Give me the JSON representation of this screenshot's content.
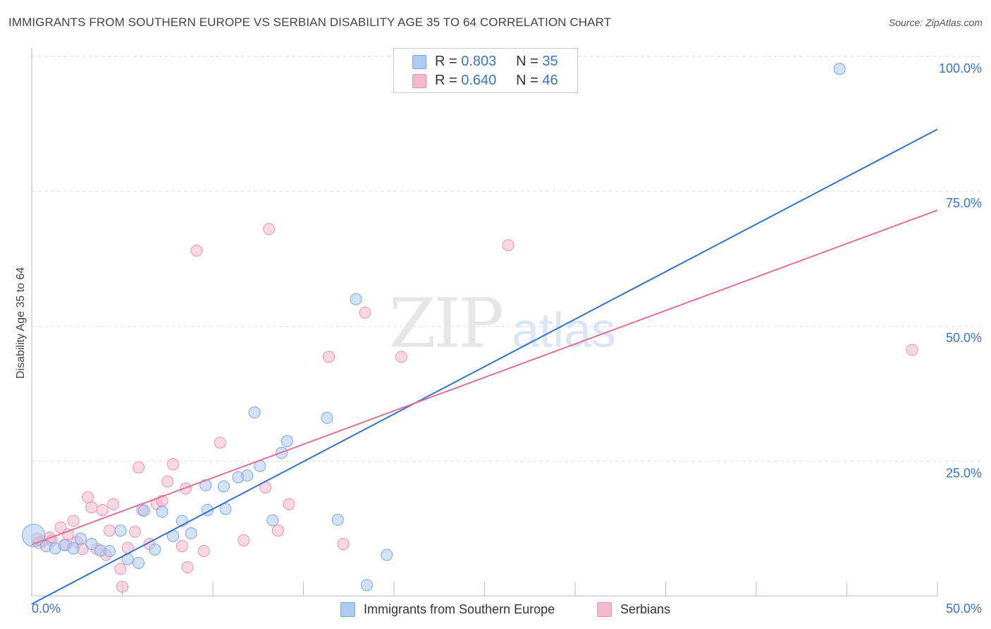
{
  "title": "IMMIGRANTS FROM SOUTHERN EUROPE VS SERBIAN DISABILITY AGE 35 TO 64 CORRELATION CHART",
  "source": "Source: ZipAtlas.com",
  "watermark": {
    "zip": "ZIP",
    "atlas": "atlas"
  },
  "colors": {
    "blue_fill": "#aecbf2",
    "blue_stroke": "#7aa6e0",
    "blue_line": "#2f73d0",
    "pink_fill": "#f5b8cc",
    "pink_stroke": "#e993b0",
    "pink_line": "#e0709a",
    "tick_label": "#3a74c8",
    "grid": "#dddddd"
  },
  "stats_legend": {
    "rows": [
      {
        "r_label": "R =",
        "r_value": "0.803",
        "n_label": "N =",
        "n_value": "35"
      },
      {
        "r_label": "R =",
        "r_value": "0.640",
        "n_label": "N =",
        "n_value": "46"
      }
    ]
  },
  "legend": {
    "blue": "Immigrants from Southern Europe",
    "pink": "Serbians"
  },
  "chart_data": {
    "type": "scatter",
    "title": "IMMIGRANTS FROM SOUTHERN EUROPE VS SERBIAN DISABILITY AGE 35 TO 64 CORRELATION CHART",
    "xlabel": "",
    "ylabel": "Disability Age 35 to 64",
    "xlim": [
      0,
      50
    ],
    "ylim": [
      0,
      100
    ],
    "x_tick_labels": [
      "0.0%",
      "50.0%"
    ],
    "y_tick_labels": [
      "25.0%",
      "50.0%",
      "75.0%",
      "100.0%"
    ],
    "y_tick_values": [
      25,
      50,
      75,
      100
    ],
    "legend_position": "bottom",
    "series": [
      {
        "name": "Immigrants from Southern Europe",
        "R": 0.803,
        "N": 35,
        "trend": {
          "x": [
            0,
            50
          ],
          "y": [
            -1.5,
            86.5
          ]
        },
        "points": [
          {
            "x": 0.1,
            "y": 11.2,
            "big": true
          },
          {
            "x": 0.8,
            "y": 9.2
          },
          {
            "x": 1.3,
            "y": 8.8
          },
          {
            "x": 1.8,
            "y": 9.4
          },
          {
            "x": 2.3,
            "y": 8.8
          },
          {
            "x": 2.7,
            "y": 10.6
          },
          {
            "x": 3.3,
            "y": 9.6
          },
          {
            "x": 3.8,
            "y": 8.4
          },
          {
            "x": 4.3,
            "y": 8.3
          },
          {
            "x": 4.9,
            "y": 12.1
          },
          {
            "x": 5.3,
            "y": 6.8
          },
          {
            "x": 5.9,
            "y": 6.1
          },
          {
            "x": 6.2,
            "y": 15.8
          },
          {
            "x": 6.8,
            "y": 8.6
          },
          {
            "x": 7.2,
            "y": 15.6
          },
          {
            "x": 7.8,
            "y": 11.1
          },
          {
            "x": 8.3,
            "y": 13.9
          },
          {
            "x": 8.8,
            "y": 11.6
          },
          {
            "x": 9.6,
            "y": 20.5
          },
          {
            "x": 9.7,
            "y": 15.9
          },
          {
            "x": 10.6,
            "y": 20.3
          },
          {
            "x": 10.7,
            "y": 16.1
          },
          {
            "x": 11.4,
            "y": 22.0
          },
          {
            "x": 11.9,
            "y": 22.3
          },
          {
            "x": 12.3,
            "y": 34.0
          },
          {
            "x": 12.6,
            "y": 24.1
          },
          {
            "x": 13.3,
            "y": 14.0
          },
          {
            "x": 13.8,
            "y": 26.5
          },
          {
            "x": 14.1,
            "y": 28.7
          },
          {
            "x": 16.3,
            "y": 33.0
          },
          {
            "x": 16.9,
            "y": 14.1
          },
          {
            "x": 17.9,
            "y": 55.0
          },
          {
            "x": 18.5,
            "y": 2.0
          },
          {
            "x": 19.6,
            "y": 7.6
          },
          {
            "x": 44.6,
            "y": 97.7
          }
        ]
      },
      {
        "name": "Serbians",
        "R": 0.64,
        "N": 46,
        "trend": {
          "x": [
            0,
            50
          ],
          "y": [
            9.5,
            71.5
          ]
        },
        "points": [
          {
            "x": 0.3,
            "y": 10.6
          },
          {
            "x": 0.6,
            "y": 10.1
          },
          {
            "x": 1.1,
            "y": 10.3
          },
          {
            "x": 1.6,
            "y": 12.7
          },
          {
            "x": 1.9,
            "y": 9.5
          },
          {
            "x": 2.3,
            "y": 13.9
          },
          {
            "x": 2.5,
            "y": 10.0
          },
          {
            "x": 2.8,
            "y": 8.7
          },
          {
            "x": 3.1,
            "y": 18.3
          },
          {
            "x": 3.3,
            "y": 16.4
          },
          {
            "x": 3.6,
            "y": 8.7
          },
          {
            "x": 3.9,
            "y": 15.9
          },
          {
            "x": 4.1,
            "y": 7.6
          },
          {
            "x": 4.3,
            "y": 12.1
          },
          {
            "x": 4.5,
            "y": 17.0
          },
          {
            "x": 4.9,
            "y": 5.0
          },
          {
            "x": 5.0,
            "y": 1.7
          },
          {
            "x": 5.3,
            "y": 8.9
          },
          {
            "x": 5.7,
            "y": 11.9
          },
          {
            "x": 5.9,
            "y": 23.8
          },
          {
            "x": 6.1,
            "y": 15.9
          },
          {
            "x": 6.5,
            "y": 9.6
          },
          {
            "x": 6.9,
            "y": 17.0
          },
          {
            "x": 7.2,
            "y": 17.6
          },
          {
            "x": 7.5,
            "y": 21.2
          },
          {
            "x": 7.8,
            "y": 24.4
          },
          {
            "x": 8.3,
            "y": 9.2
          },
          {
            "x": 8.5,
            "y": 19.9
          },
          {
            "x": 8.6,
            "y": 5.3
          },
          {
            "x": 9.1,
            "y": 64.0
          },
          {
            "x": 9.5,
            "y": 8.3
          },
          {
            "x": 10.4,
            "y": 28.4
          },
          {
            "x": 11.7,
            "y": 10.3
          },
          {
            "x": 12.9,
            "y": 20.1
          },
          {
            "x": 13.1,
            "y": 68.0
          },
          {
            "x": 13.6,
            "y": 12.1
          },
          {
            "x": 14.2,
            "y": 17.0
          },
          {
            "x": 16.4,
            "y": 44.3
          },
          {
            "x": 17.2,
            "y": 9.6
          },
          {
            "x": 18.4,
            "y": 52.5
          },
          {
            "x": 20.4,
            "y": 44.3
          },
          {
            "x": 26.3,
            "y": 65.0
          },
          {
            "x": 48.6,
            "y": 45.6
          },
          {
            "x": 1.0,
            "y": 10.8
          },
          {
            "x": 2.0,
            "y": 11.4
          },
          {
            "x": 0.4,
            "y": 9.8
          }
        ]
      }
    ]
  }
}
